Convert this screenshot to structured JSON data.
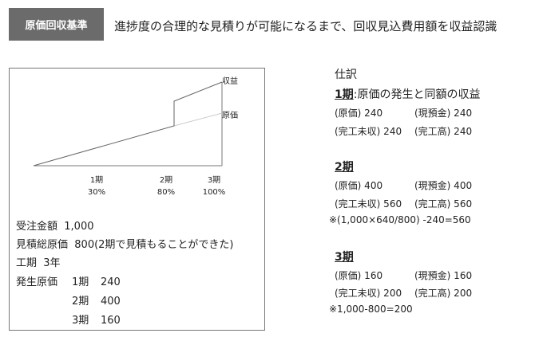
{
  "header": {
    "tag": "原価回収基準",
    "headline": "進捗度の合理的な見積りが可能になるまで、回収見込費用額を収益認識"
  },
  "chart_data": {
    "type": "line",
    "categories": [
      "1期",
      "2期",
      "3期"
    ],
    "category_sublabels": [
      "30%",
      "80%",
      "100%"
    ],
    "series": [
      {
        "name": "収益"
      },
      {
        "name": "原価"
      }
    ]
  },
  "contract": {
    "order_label": "受注金額",
    "order_value": "1,000",
    "estimate_label": "見積総原価",
    "estimate_value": "800(2期で見積もることができた)",
    "term_label": "工期",
    "term_value": "3年",
    "cost_label": "発生原価",
    "costs": [
      {
        "period": "1期",
        "amount": "240"
      },
      {
        "period": "2期",
        "amount": "400"
      },
      {
        "period": "3期",
        "amount": "160"
      }
    ]
  },
  "journal": {
    "title": "仕訳",
    "p1": {
      "head_u": "1期",
      "head_rest": ":原価の発生と同額の収益",
      "l1a": "(原価) 240",
      "l1b": "(現預金) 240",
      "l2a": "(完工未収) 240",
      "l2b": "(完工高) 240"
    },
    "p2": {
      "head_u": "2期",
      "l1a": "(原価) 400",
      "l1b": "(現預金) 400",
      "l2a": "(完工未収) 560",
      "l2b": "(完工高) 560",
      "note": "※(1,000×640/800) -240=560"
    },
    "p3": {
      "head_u": "3期",
      "l1a": "(原価) 160",
      "l1b": "(現預金) 160",
      "l2a": "(完工未収) 200",
      "l2b": "(完工高) 200",
      "note": "※1,000-800=200"
    }
  }
}
